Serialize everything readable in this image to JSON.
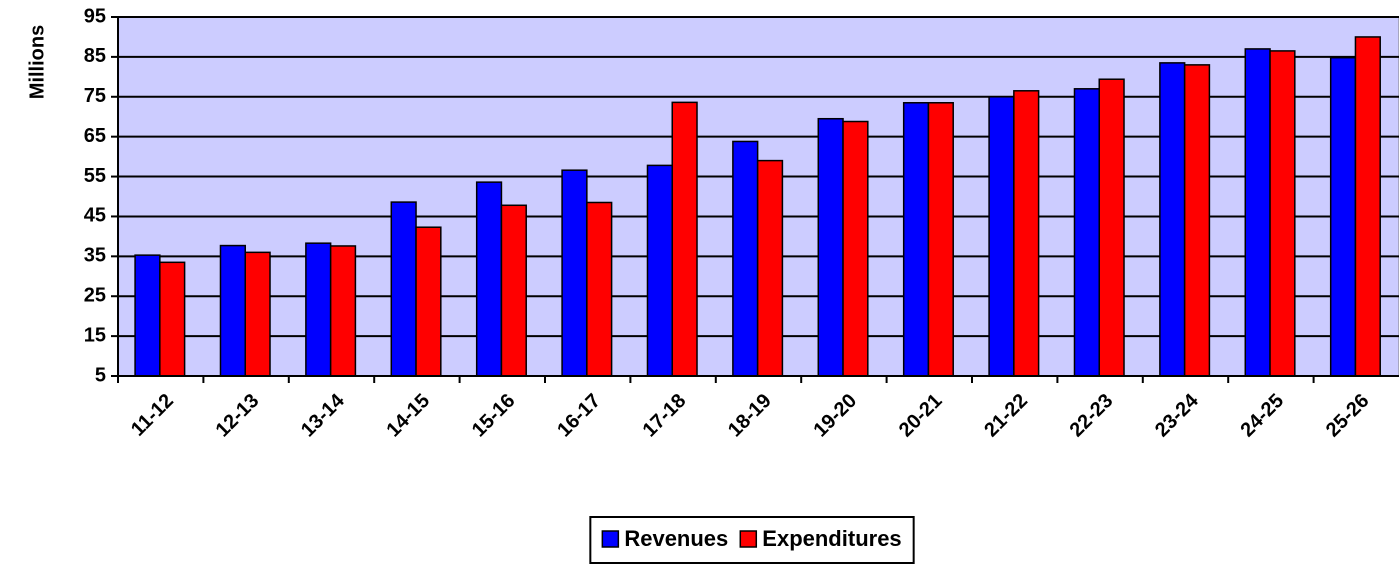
{
  "chart_data": {
    "type": "bar",
    "y_label": "Millions",
    "categories": [
      "11-12",
      "12-13",
      "13-14",
      "14-15",
      "15-16",
      "16-17",
      "17-18",
      "18-19",
      "19-20",
      "20-21",
      "21-22",
      "22-23",
      "23-24",
      "24-25",
      "25-26"
    ],
    "series": [
      {
        "name": "Revenues",
        "color": "#0000ff",
        "values": [
          35.3,
          37.7,
          38.3,
          48.6,
          53.6,
          56.6,
          57.8,
          63.8,
          69.5,
          73.5,
          75,
          77,
          83.5,
          87,
          84.8
        ]
      },
      {
        "name": "Expenditures",
        "color": "#ff0000",
        "values": [
          33.5,
          36,
          37.6,
          42.3,
          47.8,
          48.5,
          73.6,
          59,
          68.8,
          73.5,
          76.5,
          79.4,
          83,
          86.5,
          90
        ]
      }
    ],
    "ylim": [
      5,
      95
    ],
    "yticks": [
      5,
      15,
      25,
      35,
      45,
      55,
      65,
      75,
      85,
      95
    ],
    "grid": true,
    "plot_background": "#ccccff"
  }
}
